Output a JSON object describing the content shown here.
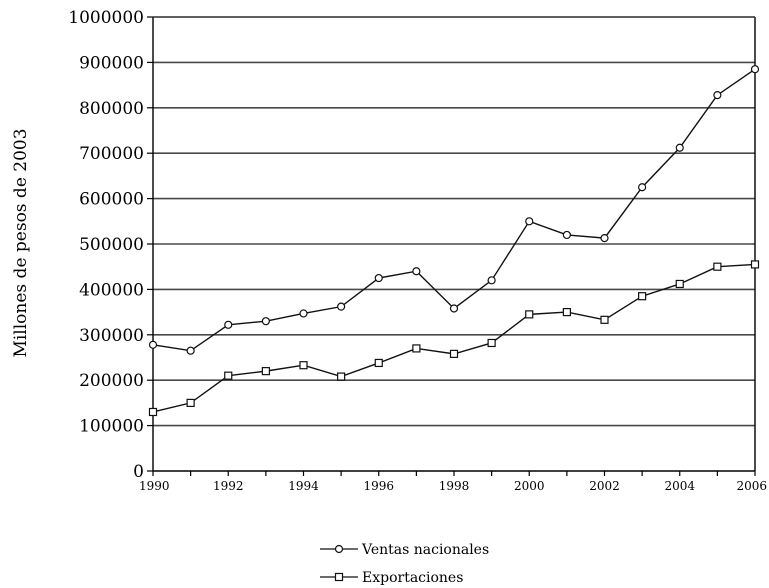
{
  "chart_data": {
    "type": "line",
    "title": "",
    "xlabel": "",
    "ylabel": "Millones de pesos de 2003",
    "xlim": [
      1990,
      2006
    ],
    "ylim": [
      0,
      1000000
    ],
    "x_ticks": [
      "1990",
      "1992",
      "1994",
      "1996",
      "1998",
      "2000",
      "2002",
      "2004",
      "2006"
    ],
    "y_ticks": [
      "0",
      "100000",
      "200000",
      "300000",
      "400000",
      "500000",
      "600000",
      "700000",
      "800000",
      "900000",
      "1000000"
    ],
    "grid": "horizontal",
    "legend_position": "bottom-center",
    "x": [
      1990,
      1991,
      1992,
      1993,
      1994,
      1995,
      1996,
      1997,
      1998,
      1999,
      2000,
      2001,
      2002,
      2003,
      2004,
      2005,
      2006
    ],
    "series": [
      {
        "name": "Ventas nacionales",
        "marker": "circle",
        "values": [
          278000,
          265000,
          322000,
          330000,
          347000,
          362000,
          425000,
          440000,
          358000,
          420000,
          550000,
          520000,
          513000,
          625000,
          712000,
          828000,
          885000
        ]
      },
      {
        "name": "Exportaciones",
        "marker": "square",
        "values": [
          130000,
          150000,
          210000,
          220000,
          233000,
          208000,
          238000,
          270000,
          258000,
          282000,
          345000,
          350000,
          333000,
          385000,
          412000,
          450000,
          455000
        ]
      }
    ]
  }
}
